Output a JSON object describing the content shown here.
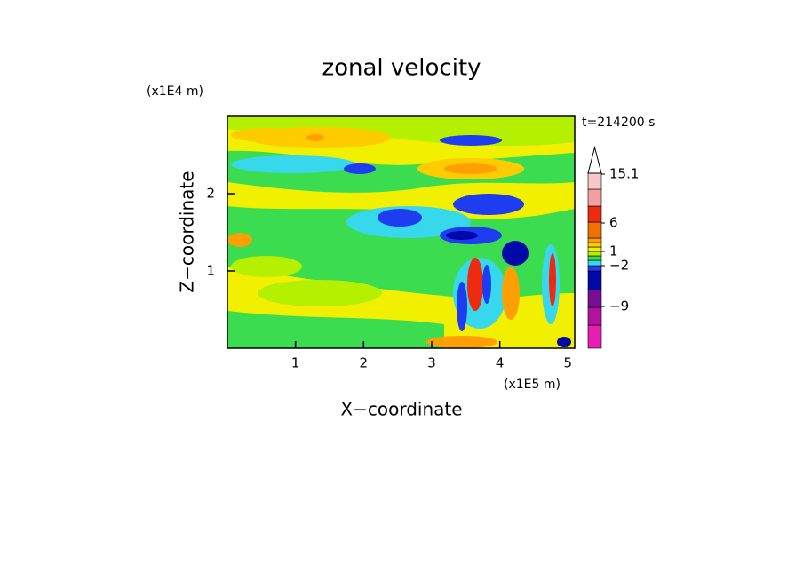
{
  "chart_data": {
    "type": "contour",
    "title": "zonal velocity",
    "x_label": "X−coordinate",
    "y_label": "Z−coordinate",
    "x_multiplier": "(x1E5 m)",
    "y_multiplier": "(x1E4 m)",
    "annotation": "t=214200 s",
    "xlim": [
      0,
      5.1
    ],
    "xticks": [
      1,
      2,
      3,
      4,
      5
    ],
    "ylim": [
      0,
      3
    ],
    "yticks": [
      1,
      2
    ],
    "colorbar": {
      "colors": [
        "#e81eb4",
        "#b4129e",
        "#7a0c96",
        "#0008a8",
        "#1e3cf0",
        "#38d8ec",
        "#3cdc50",
        "#b4f000",
        "#f0f000",
        "#ffcc00",
        "#ffa000",
        "#f07000",
        "#ee2a10",
        "#f4a0a0",
        "#f8c8c8"
      ],
      "ticks": [
        {
          "value": 15.1,
          "label": "15.1"
        },
        6,
        1,
        {
          "value": -2,
          "label": "−2"
        },
        {
          "value": -9,
          "label": "−9"
        }
      ]
    }
  }
}
